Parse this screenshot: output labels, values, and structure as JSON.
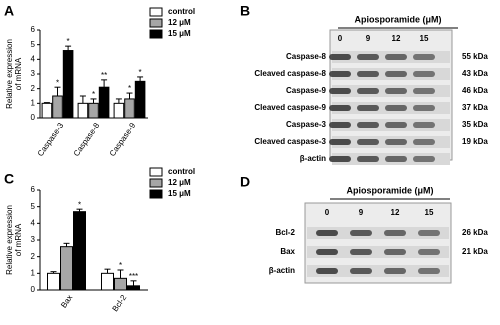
{
  "chart_data": [
    {
      "type": "bar",
      "label": "A",
      "ylabel": [
        "Relative expression",
        "of mRNA"
      ],
      "categories": [
        "Caspase-3",
        "Caspase-8",
        "Caspase-9"
      ],
      "series": [
        {
          "name": "control",
          "color": "#ffffff",
          "values": [
            1.0,
            1.0,
            1.0
          ],
          "errors": [
            0.05,
            0.5,
            0.3
          ],
          "significance": [
            null,
            null,
            null
          ]
        },
        {
          "name": "12 μM",
          "color": "#a6a6a6",
          "values": [
            1.5,
            1.0,
            1.3
          ],
          "errors": [
            0.6,
            0.3,
            0.4
          ],
          "significance": [
            "*",
            "*",
            "*"
          ]
        },
        {
          "name": "15 μM",
          "color": "#000000",
          "values": [
            4.6,
            2.1,
            2.5
          ],
          "errors": [
            0.3,
            0.5,
            0.3
          ],
          "significance": [
            "*",
            "**",
            "*"
          ]
        }
      ],
      "ylim": [
        0,
        6
      ],
      "yticks": [
        0,
        1,
        2,
        3,
        4,
        5,
        6
      ]
    },
    {
      "type": "bar",
      "label": "C",
      "ylabel": [
        "Relative expression",
        "of mRNA"
      ],
      "categories": [
        "Bax",
        "Bcl-2"
      ],
      "series": [
        {
          "name": "control",
          "color": "#ffffff",
          "values": [
            1.0,
            1.0
          ],
          "errors": [
            0.1,
            0.25
          ],
          "significance": [
            null,
            null
          ]
        },
        {
          "name": "12 μM",
          "color": "#a6a6a6",
          "values": [
            2.6,
            0.7
          ],
          "errors": [
            0.2,
            0.5
          ],
          "significance": [
            null,
            "*"
          ]
        },
        {
          "name": "15 μM",
          "color": "#000000",
          "values": [
            4.7,
            0.25
          ],
          "errors": [
            0.15,
            0.3
          ],
          "significance": [
            "*",
            "***"
          ]
        }
      ],
      "ylim": [
        0,
        6
      ],
      "yticks": [
        0,
        1,
        2,
        3,
        4,
        5,
        6
      ]
    }
  ],
  "blots": [
    {
      "label": "B",
      "title": "Apiosporamide (μM)",
      "lanes": [
        "0",
        "9",
        "12",
        "15"
      ],
      "rows": [
        {
          "name": "Caspase-8",
          "size": "55 kDa"
        },
        {
          "name": "Cleaved caspase-8",
          "size": "43 kDa"
        },
        {
          "name": "Caspase-9",
          "size": "46 kDa"
        },
        {
          "name": "Cleaved caspase-9",
          "size": "37 kDa"
        },
        {
          "name": "Caspase-3",
          "size": "35 kDa"
        },
        {
          "name": "Cleaved caspase-3",
          "size": "19 kDa"
        },
        {
          "name": "β-actin",
          "size": null
        }
      ]
    },
    {
      "label": "D",
      "title": "Apiosporamide (μM)",
      "lanes": [
        "0",
        "9",
        "12",
        "15"
      ],
      "rows": [
        {
          "name": "Bcl-2",
          "size": "26 kDa"
        },
        {
          "name": "Bax",
          "size": "21 kDa"
        },
        {
          "name": "β-actin",
          "size": null
        }
      ]
    }
  ]
}
